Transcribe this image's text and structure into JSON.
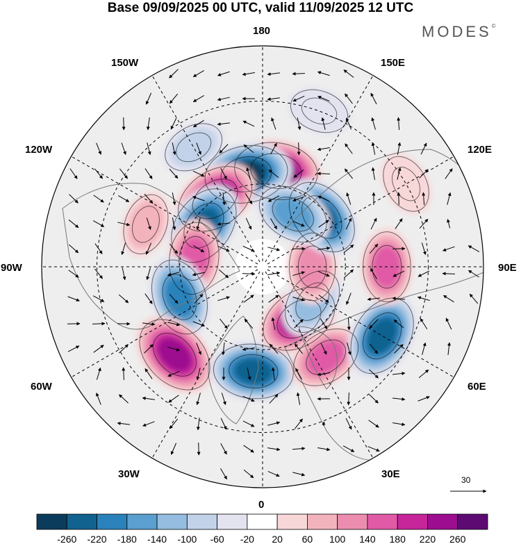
{
  "title": "Base 09/09/2025 00 UTC, valid 11/09/2025 12 UTC",
  "brand": "MODES",
  "brand_mark": "©",
  "longitude_labels": {
    "n180": "180",
    "w150": "150W",
    "e150": "150E",
    "w120": "120W",
    "e120": "120E",
    "w90": "90W",
    "e90": "90E",
    "w60": "60W",
    "e60": "60E",
    "w30": "30W",
    "e30": "30E",
    "s0": "0"
  },
  "vector_scale": {
    "value": "30"
  },
  "colorbar": {
    "tick_labels": [
      "-260",
      "-220",
      "-180",
      "-140",
      "-100",
      "-60",
      "-20",
      "20",
      "60",
      "100",
      "140",
      "180",
      "220",
      "260"
    ],
    "colors": [
      "#0c3c5c",
      "#11628f",
      "#2b82bb",
      "#5a9fcf",
      "#94bde0",
      "#c2d3e9",
      "#e3e3f0",
      "#ffffff",
      "#f8d7d9",
      "#f3b3bd",
      "#ec8db0",
      "#e05aa6",
      "#c7259a",
      "#9c0d8f",
      "#5d0a73"
    ]
  },
  "anomaly_centers": [
    {
      "lon": 172,
      "lat": 55,
      "value": 260
    },
    {
      "lon": -170,
      "lat": 56,
      "value": -260
    },
    {
      "lon": -145,
      "lat": 60,
      "value": 240
    },
    {
      "lon": -125,
      "lat": 64,
      "value": -240
    },
    {
      "lon": -110,
      "lat": 45,
      "value": 60
    },
    {
      "lon": -97,
      "lat": 65,
      "value": 160
    },
    {
      "lon": -70,
      "lat": 58,
      "value": -200
    },
    {
      "lon": -45,
      "lat": 45,
      "value": 250
    },
    {
      "lon": -5,
      "lat": 52,
      "value": -230
    },
    {
      "lon": 35,
      "lat": 67,
      "value": 220
    },
    {
      "lon": 35,
      "lat": 50,
      "value": 150
    },
    {
      "lon": 60,
      "lat": 40,
      "value": -240
    },
    {
      "lon": 55,
      "lat": 68,
      "value": -120
    },
    {
      "lon": 90,
      "lat": 45,
      "value": 140
    },
    {
      "lon": 90,
      "lat": 72,
      "value": 120
    },
    {
      "lon": 130,
      "lat": 62,
      "value": -220
    },
    {
      "lon": 150,
      "lat": 68,
      "value": -160
    },
    {
      "lon": 120,
      "lat": 30,
      "value": 40
    },
    {
      "lon": -150,
      "lat": 40,
      "value": -60
    },
    {
      "lon": 160,
      "lat": 30,
      "value": -40
    }
  ]
}
